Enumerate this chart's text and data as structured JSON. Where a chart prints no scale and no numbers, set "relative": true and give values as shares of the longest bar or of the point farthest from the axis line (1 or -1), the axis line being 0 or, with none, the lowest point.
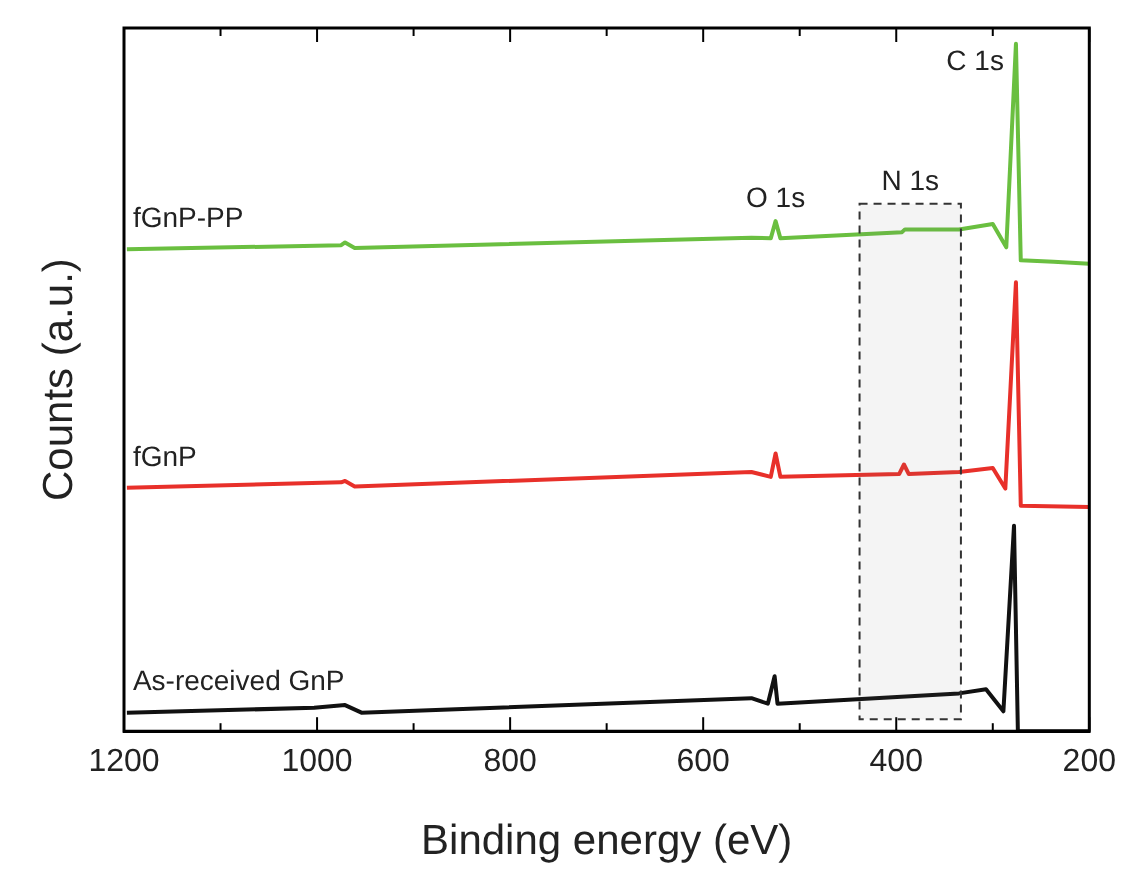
{
  "chart_data": {
    "type": "line",
    "relative": true,
    "xlabel": "Binding energy (eV)",
    "ylabel": "Counts (a.u.)",
    "xlim": [
      1200,
      200
    ],
    "xticks": [
      1200,
      {
        "value": 1100,
        "label": null
      },
      1000,
      {
        "value": 900,
        "label": null
      },
      800,
      {
        "value": 700,
        "label": null
      },
      600,
      {
        "value": 500,
        "label": null
      },
      400,
      {
        "value": 300,
        "label": null
      },
      200
    ],
    "tick_labels": "x",
    "legend": false,
    "series": [
      {
        "name": "fGnP-PP",
        "color": "#6abf40",
        "x": [
          1197,
          975,
          971,
          961,
          550,
          530,
          525,
          520,
          394,
          391,
          335,
          300,
          286,
          276,
          271,
          237,
          200
        ],
        "values": [
          0.701,
          0.707,
          0.711,
          0.703,
          0.718,
          0.717,
          0.742,
          0.717,
          0.726,
          0.73,
          0.73,
          0.738,
          0.704,
          1,
          0.685,
          0.683,
          0.68
        ]
      },
      {
        "name": "fGnP",
        "color": "#e8302a",
        "x": [
          1197,
          975,
          971,
          961,
          550,
          530,
          525,
          520,
          397,
          392,
          387,
          335,
          300,
          287,
          276,
          271,
          200
        ],
        "values": [
          0.354,
          0.362,
          0.364,
          0.356,
          0.377,
          0.37,
          0.404,
          0.37,
          0.374,
          0.388,
          0.374,
          0.377,
          0.383,
          0.353,
          0.653,
          0.328,
          0.326
        ]
      },
      {
        "name": "As-received GnP",
        "color": "#111111",
        "x": [
          1197,
          1003,
          971,
          954,
          550,
          533,
          526,
          523,
          335,
          307,
          289,
          278,
          274,
          200
        ],
        "values": [
          0.027,
          0.034,
          0.038,
          0.027,
          0.048,
          0.04,
          0.08,
          0.04,
          0.055,
          0.061,
          0.029,
          0.299,
          0,
          0
        ]
      }
    ],
    "bands": [
      {
        "axis": "x",
        "from": 438,
        "to": 333,
        "label": "N 1s"
      }
    ],
    "annotations": [
      {
        "text": "O 1s",
        "x": 525,
        "y": 0.742
      },
      {
        "text": "C 1s",
        "x": 276,
        "y": 1
      }
    ]
  }
}
